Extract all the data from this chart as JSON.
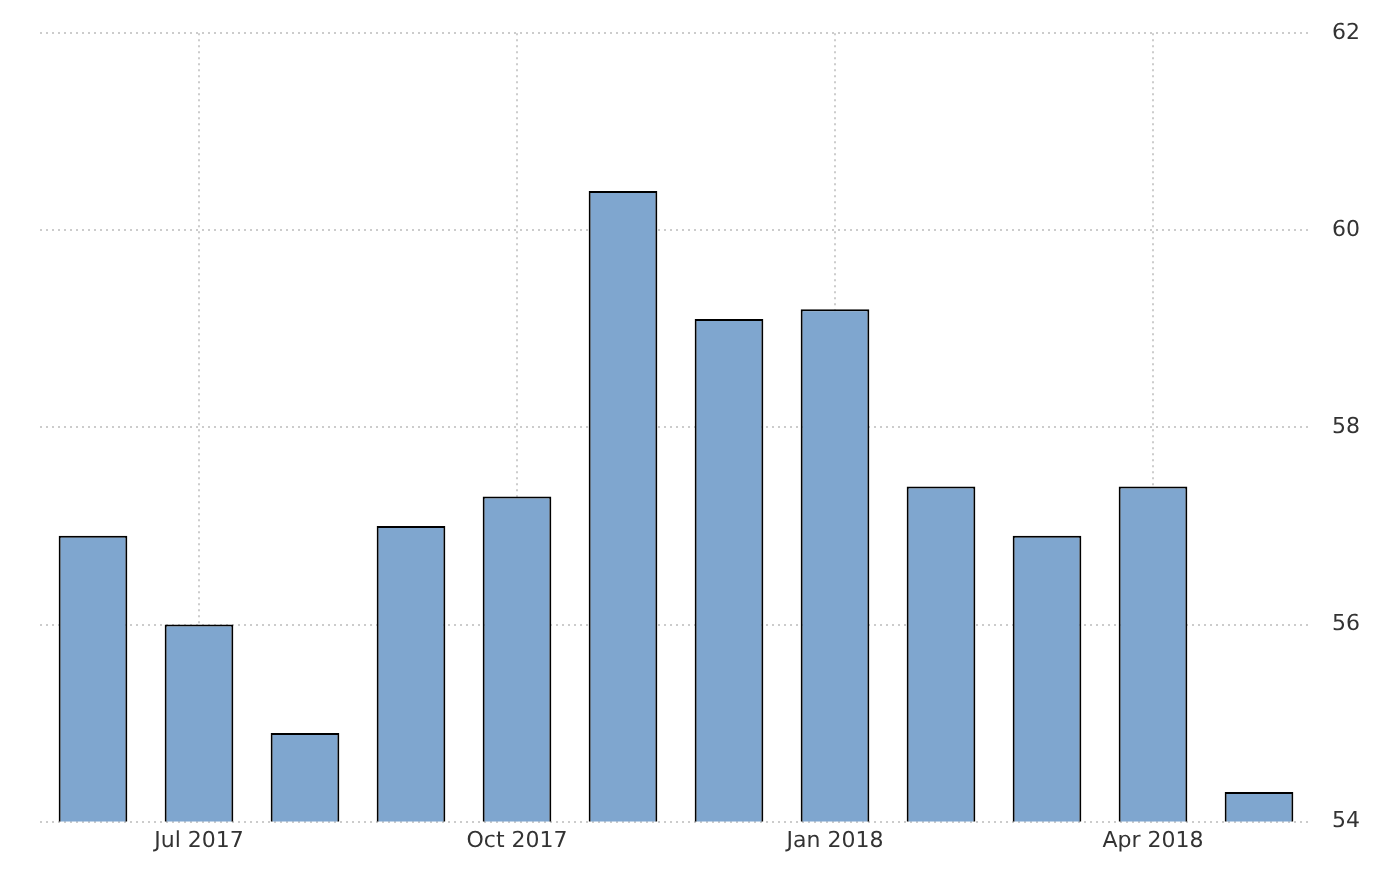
{
  "chart_data": {
    "type": "bar",
    "categories": [
      null,
      "Jul 2017",
      null,
      null,
      "Oct 2017",
      null,
      null,
      "Jan 2018",
      null,
      null,
      "Apr 2018",
      null
    ],
    "values": [
      56.9,
      56.0,
      54.9,
      57.0,
      57.3,
      60.4,
      59.1,
      59.2,
      57.4,
      56.9,
      57.4,
      54.3
    ],
    "color": "#7fa6cf",
    "ylim": [
      54,
      62
    ],
    "yticks": [
      54,
      56,
      58,
      60,
      62
    ],
    "grid": true,
    "legend": false
  }
}
